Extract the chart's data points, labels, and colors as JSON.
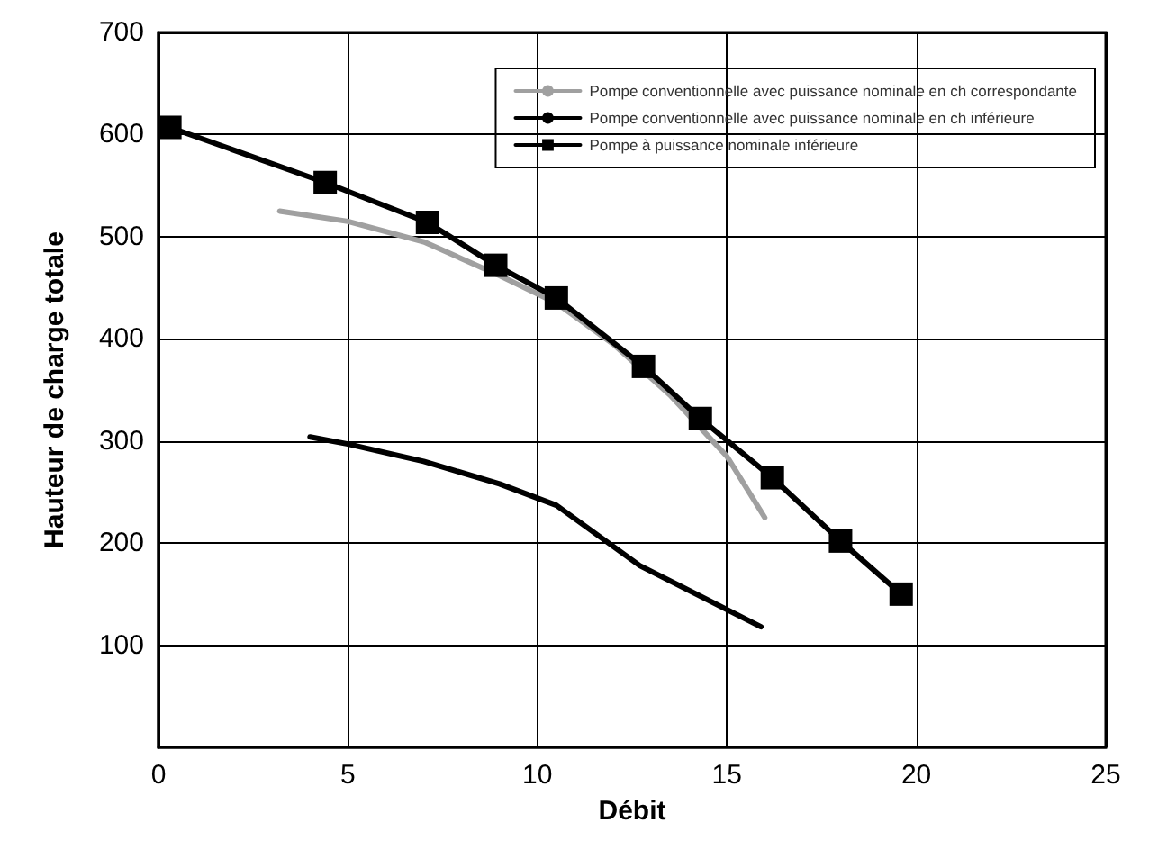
{
  "chart_data": {
    "type": "line",
    "xlabel": "Débit",
    "ylabel": "Hauteur de charge totale",
    "xlim": [
      0,
      25
    ],
    "xticks": [
      0,
      5,
      10,
      15,
      20,
      25
    ],
    "ylim": [
      0,
      700
    ],
    "yticks": [
      100,
      200,
      300,
      400,
      500,
      600,
      700
    ],
    "grid": true,
    "legend": "top right",
    "line_style": "solid",
    "series": [
      {
        "name": "Pompe conventionnelle avec puissance nominale en ch correspondante",
        "color": "#a0a0a0",
        "marker": "none",
        "x": [
          3.2,
          5,
          7,
          9,
          10.5,
          12,
          13.5,
          15,
          16
        ],
        "values": [
          525,
          515,
          495,
          462,
          435,
          395,
          345,
          285,
          225
        ]
      },
      {
        "name": "Pompe conventionnelle avec puissance nominale en ch inférieure",
        "color": "#000000",
        "marker": "none",
        "x": [
          4,
          5,
          7,
          9,
          10.5,
          12.7,
          15.9
        ],
        "values": [
          304,
          297,
          280,
          258,
          237,
          178,
          118
        ]
      },
      {
        "name": "Pompe à puissance nominale inférieure",
        "color": "#000000",
        "marker": "square",
        "x": [
          0.3,
          4.4,
          7.1,
          8.9,
          10.5,
          12.8,
          14.3,
          16.2,
          18,
          19.6
        ],
        "values": [
          607,
          553,
          514,
          472,
          440,
          373,
          322,
          264,
          202,
          150
        ]
      }
    ]
  }
}
